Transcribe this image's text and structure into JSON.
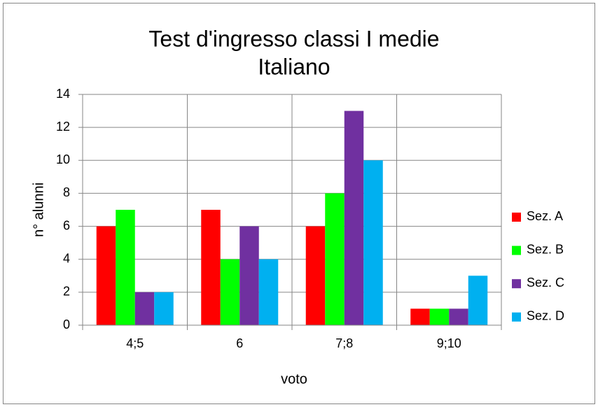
{
  "chart_data": {
    "type": "bar",
    "title": [
      "Test d'ingresso classi I medie",
      "Italiano"
    ],
    "xlabel": "voto",
    "ylabel": "n° alunni",
    "categories": [
      "4;5",
      "6",
      "7;8",
      "9;10"
    ],
    "series": [
      {
        "name": "Sez. A",
        "color": "#ff0000",
        "values": [
          6,
          7,
          6,
          1
        ]
      },
      {
        "name": "Sez. B",
        "color": "#00ff00",
        "values": [
          7,
          4,
          8,
          1
        ]
      },
      {
        "name": "Sez. C",
        "color": "#7030a0",
        "values": [
          2,
          6,
          13,
          1
        ]
      },
      {
        "name": "Sez. D",
        "color": "#00b0f0",
        "values": [
          2,
          4,
          10,
          3
        ]
      }
    ],
    "ylim": [
      0,
      14
    ],
    "yticks": [
      0,
      2,
      4,
      6,
      8,
      10,
      12,
      14
    ],
    "grid": true,
    "legend": "right"
  }
}
